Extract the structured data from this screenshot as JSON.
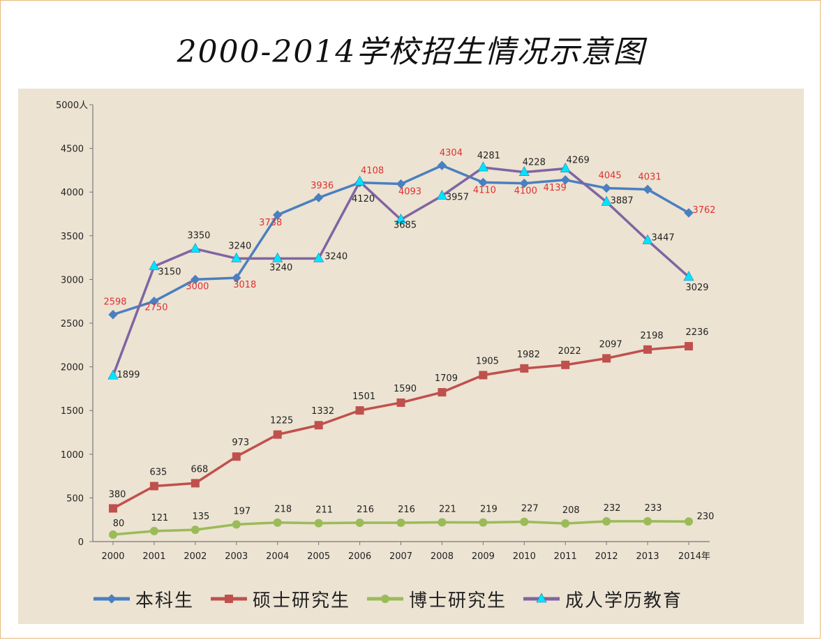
{
  "chart_data": {
    "type": "line",
    "title": "2000-2014学校招生情况示意图",
    "ylabel_unit": "人",
    "xlabel_unit": "年",
    "ylim": [
      0,
      5000
    ],
    "yticks": [
      0,
      500,
      1000,
      1500,
      2000,
      2500,
      3000,
      3500,
      4000,
      4500,
      5000
    ],
    "ytick_labels": [
      "0",
      "500",
      "1000",
      "1500",
      "2000",
      "2500",
      "3000",
      "3500",
      "4000",
      "4500",
      "5000"
    ],
    "categories": [
      "2000",
      "2001",
      "2002",
      "2003",
      "2004",
      "2005",
      "2006",
      "2007",
      "2008",
      "2009",
      "2010",
      "2011",
      "2012",
      "2013",
      "2014"
    ],
    "series": [
      {
        "name": "本科生",
        "color": "#4a7fc0",
        "marker": "diamond",
        "label_color": "#e03030",
        "values": [
          2598,
          2750,
          3000,
          3018,
          3738,
          3936,
          4108,
          4093,
          4304,
          4110,
          4100,
          4139,
          4045,
          4031,
          3762
        ]
      },
      {
        "name": "硕士研究生",
        "color": "#c0504d",
        "marker": "square",
        "label_color": "#222222",
        "values": [
          380,
          635,
          668,
          973,
          1225,
          1332,
          1501,
          1590,
          1709,
          1905,
          1982,
          2022,
          2097,
          2198,
          2236
        ]
      },
      {
        "name": "博士研究生",
        "color": "#9bbb59",
        "marker": "circle",
        "label_color": "#222222",
        "values": [
          80,
          121,
          135,
          197,
          218,
          211,
          216,
          216,
          221,
          219,
          227,
          208,
          232,
          233,
          230
        ]
      },
      {
        "name": "成人学历教育",
        "color": "#8064a2",
        "marker": "triangle",
        "marker_color": "#00e5ff",
        "label_color": "#222222",
        "values": [
          1899,
          3150,
          3350,
          3240,
          3240,
          3240,
          4120,
          3685,
          3957,
          4281,
          4228,
          4269,
          3887,
          3447,
          3029
        ]
      }
    ]
  }
}
